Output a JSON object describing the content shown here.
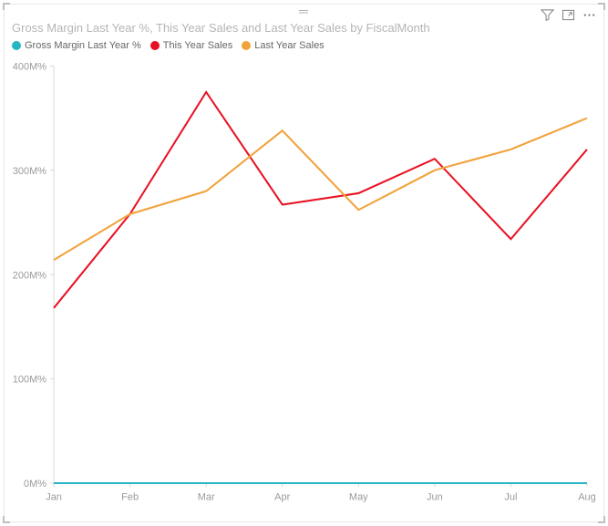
{
  "title": "Gross Margin Last Year %, This Year Sales and Last Year Sales by FiscalMonth",
  "header": {
    "filter_icon": "filter",
    "focus_icon": "focus-mode",
    "more_icon": "more-options"
  },
  "legend": [
    {
      "label": "Gross Margin Last Year %",
      "color": "#26b5c4"
    },
    {
      "label": "This Year Sales",
      "color": "#e81123"
    },
    {
      "label": "Last Year Sales",
      "color": "#f2a23b"
    }
  ],
  "chart": {
    "type": "line",
    "background_color": "#ffffff",
    "axis_color": "#d9d9d9",
    "tick_color": "#9a9a9a",
    "tick_fontsize": 11,
    "categories": [
      "Jan",
      "Feb",
      "Mar",
      "Apr",
      "May",
      "Jun",
      "Jul",
      "Aug"
    ],
    "ylim": [
      0,
      400
    ],
    "ytick_step": 100,
    "ytick_format_suffix": "M%",
    "line_width": 2,
    "series": [
      {
        "name": "Gross Margin Last Year %",
        "color": "#26b5c4",
        "values": [
          0,
          0,
          0,
          0,
          0,
          0,
          0,
          0
        ]
      },
      {
        "name": "This Year Sales",
        "color": "#e81123",
        "values": [
          168,
          258,
          375,
          267,
          278,
          311,
          234,
          320
        ]
      },
      {
        "name": "Last Year Sales",
        "color": "#f2a23b",
        "values": [
          214,
          258,
          280,
          338,
          262,
          300,
          320,
          350
        ]
      }
    ]
  }
}
